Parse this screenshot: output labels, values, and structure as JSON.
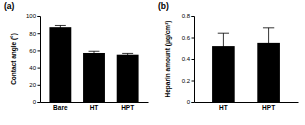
{
  "chart_data": [
    {
      "type": "bar",
      "title": "(a)",
      "ylabel": "Contact angle (°)",
      "categories": [
        "Bare",
        "HT",
        "HPT"
      ],
      "values": [
        87,
        57,
        55
      ],
      "errors": [
        2,
        2,
        1.5
      ],
      "color": "#000000",
      "ylim": [
        0,
        100
      ],
      "yticks": [
        0,
        20,
        40,
        60,
        80,
        100
      ]
    },
    {
      "type": "bar",
      "title": "(b)",
      "ylabel": "Heparin amount (μg/cm²)",
      "categories": [
        "HT",
        "HPT"
      ],
      "values": [
        0.52,
        0.55
      ],
      "errors": [
        0.12,
        0.14
      ],
      "color": "#000000",
      "ylim": [
        0,
        0.8
      ],
      "yticks": [
        0,
        0.2,
        0.4,
        0.6,
        0.8
      ]
    }
  ]
}
